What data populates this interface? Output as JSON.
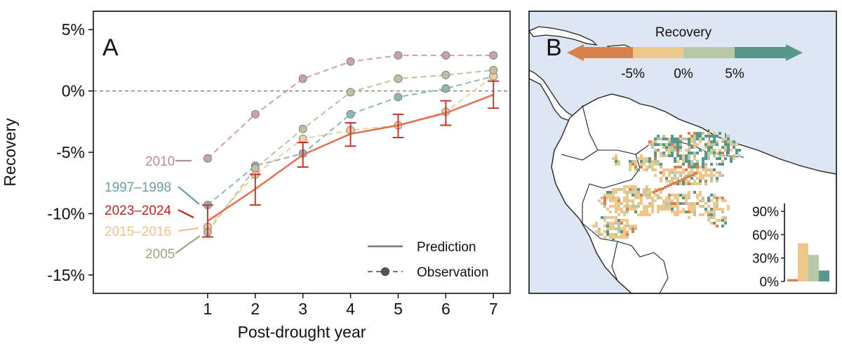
{
  "chart_data": [
    {
      "panel_label": "A",
      "type": "line",
      "xlabel": "Post-drought year",
      "ylabel": "Recovery",
      "x_ticks": [
        1,
        2,
        3,
        4,
        5,
        6,
        7
      ],
      "x_tick_labels": [
        "1",
        "2",
        "3",
        "4",
        "5",
        "6",
        "7"
      ],
      "y_ticks": [
        5,
        0,
        -5,
        -10,
        -15
      ],
      "y_tick_labels": [
        "5%",
        "0%",
        "-5%",
        "-10%",
        "-15%"
      ],
      "xlim": [
        -1.4,
        7.35
      ],
      "ylim": [
        -16.5,
        6.5
      ],
      "reference_line": 0,
      "legend": {
        "position": "bottom-right",
        "prediction_label": "Prediction",
        "observation_label": "Observation"
      },
      "prediction": {
        "name": "2023–2024",
        "color": "#e0735a",
        "x": [
          1,
          2,
          3,
          4,
          5,
          6,
          7
        ],
        "y": [
          -10.6,
          -8.0,
          -5.2,
          -3.5,
          -2.8,
          -1.8,
          -0.3
        ],
        "err_low": [
          -11.9,
          -9.3,
          -6.2,
          -4.5,
          -3.8,
          -2.8,
          -1.4
        ],
        "err_high": [
          -9.3,
          -6.8,
          -4.2,
          -2.6,
          -1.9,
          -0.8,
          0.8
        ],
        "err_color": "#c0392b"
      },
      "series": [
        {
          "name": "2010",
          "color": "#c9a3a8",
          "x": [
            1,
            2,
            3,
            4,
            5,
            6,
            7
          ],
          "y": [
            -5.5,
            -1.9,
            1.0,
            2.4,
            2.9,
            2.9,
            2.9
          ]
        },
        {
          "name": "1997–1998",
          "color": "#8fb5b5",
          "x": [
            1,
            2,
            3,
            4,
            5,
            6,
            7
          ],
          "y": [
            -9.3,
            -6.1,
            -5.1,
            -1.9,
            -0.5,
            0.2,
            1.2
          ]
        },
        {
          "name": "2015–2016",
          "color": "#efcf9e",
          "x": [
            1,
            2,
            3,
            4,
            5,
            6,
            7
          ],
          "y": [
            -11.1,
            -6.8,
            -3.9,
            -3.2,
            -2.8,
            -1.7,
            1.2
          ]
        },
        {
          "name": "2005",
          "color": "#c2bfa4",
          "x": [
            1,
            2,
            3,
            4,
            5,
            6,
            7
          ],
          "y": [
            -11.5,
            -6.3,
            -3.1,
            -0.1,
            1.0,
            1.3,
            1.7
          ]
        }
      ],
      "series_labels": [
        {
          "text": "2010",
          "color": "#b88d8f"
        },
        {
          "text": "1997–1998",
          "color": "#6e9ea0"
        },
        {
          "text": "2023–2024",
          "color": "#b5271f"
        },
        {
          "text": "2015–2016",
          "color": "#e8c48b"
        },
        {
          "text": "2005",
          "color": "#a89f80"
        }
      ]
    },
    {
      "panel_label": "B",
      "type": "map",
      "title": "Recovery",
      "colorbar_ticks": [
        "-5%",
        "0%",
        "5%"
      ],
      "colorbar_colors": [
        "#d9804f",
        "#ecc88d",
        "#b8c7a6",
        "#5a978b"
      ],
      "inset_histogram": {
        "type": "bar",
        "y_ticks": [
          0,
          30,
          60,
          90
        ],
        "y_tick_labels": [
          "0%",
          "30%",
          "60%",
          "90%"
        ],
        "ylim": [
          0,
          100
        ],
        "values": [
          3,
          49,
          34,
          14
        ],
        "colors": [
          "#d9804f",
          "#ecc88d",
          "#b8c7a6",
          "#5a978b"
        ]
      }
    }
  ]
}
